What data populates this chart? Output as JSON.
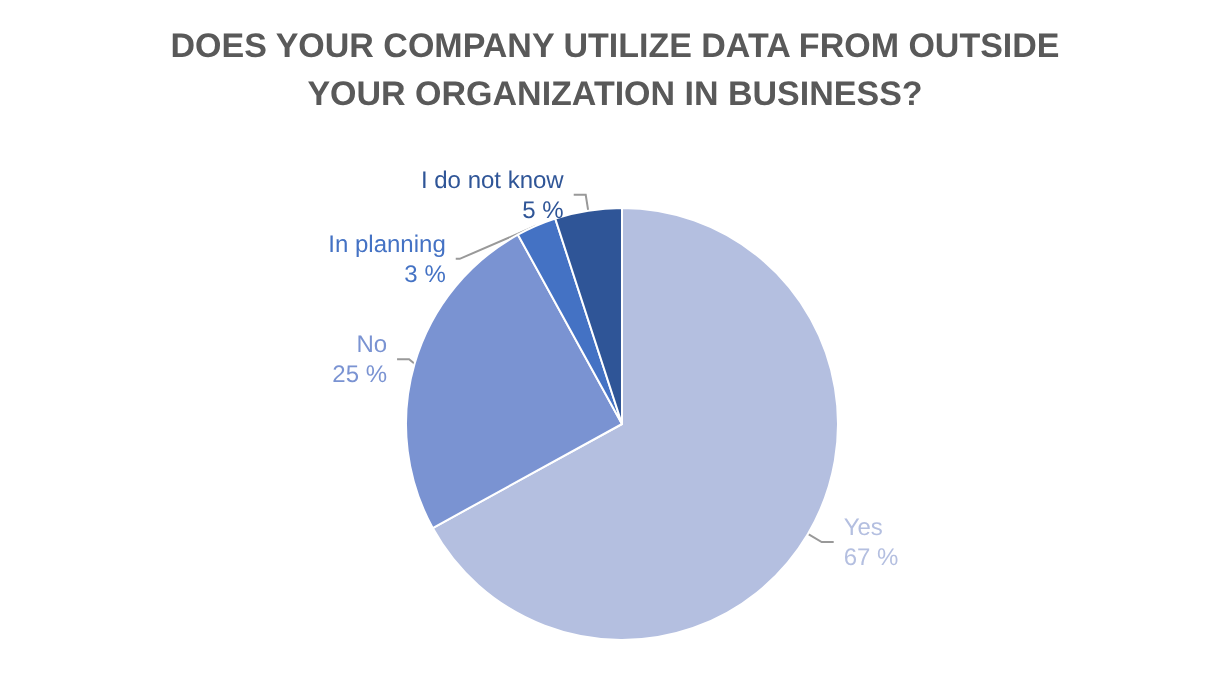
{
  "chart_data": {
    "type": "pie",
    "title": "DOES YOUR COMPANY UTILIZE DATA FROM OUTSIDE\nYOUR ORGANIZATION IN BUSINESS?",
    "categories": [
      "Yes",
      "No",
      "In planning",
      "I do not know"
    ],
    "values": [
      67,
      25,
      3,
      5
    ],
    "colors": [
      "#b4bfe0",
      "#7a93d2",
      "#4472c4",
      "#2f5597"
    ],
    "value_labels": [
      "67 %",
      "25 %",
      "3 %",
      "5 %"
    ],
    "legend": false
  }
}
